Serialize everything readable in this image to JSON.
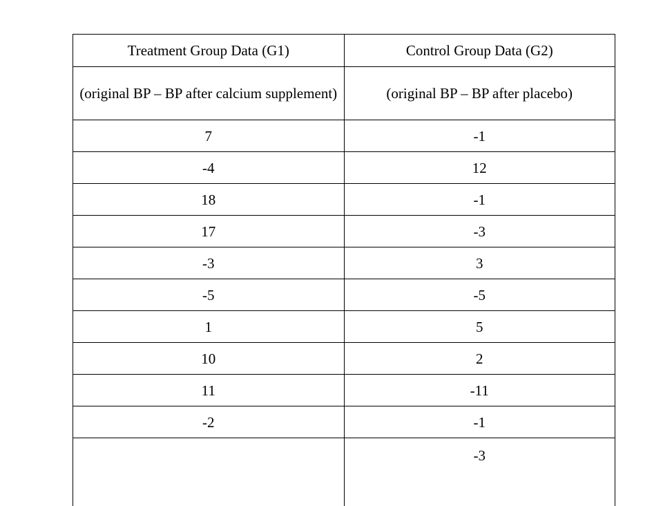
{
  "table": {
    "headers": [
      "Treatment Group Data (G1)",
      "Control Group Data (G2)"
    ],
    "subheaders": [
      "(original BP – BP after calcium supplement)",
      "(original BP – BP after placebo)"
    ],
    "rows": [
      [
        "7",
        "-1"
      ],
      [
        "-4",
        "12"
      ],
      [
        "18",
        "-1"
      ],
      [
        "17",
        "-3"
      ],
      [
        "-3",
        "3"
      ],
      [
        "-5",
        "-5"
      ],
      [
        "1",
        "5"
      ],
      [
        "10",
        "2"
      ],
      [
        "11",
        "-11"
      ],
      [
        "-2",
        "-1"
      ],
      [
        "",
        "-3"
      ]
    ]
  }
}
